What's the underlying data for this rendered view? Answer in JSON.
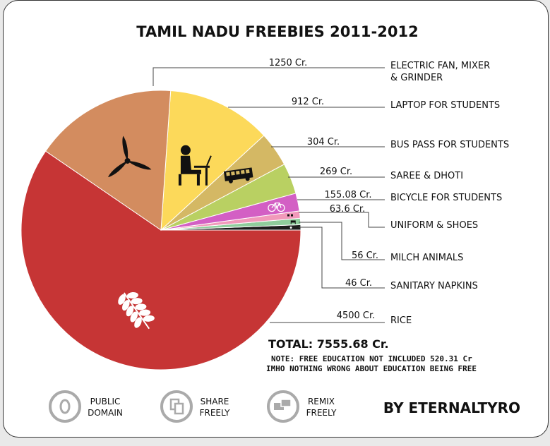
{
  "chart_data": {
    "type": "pie",
    "title": "TAMIL NADU FREEBIES 2011-2012",
    "unit": "Cr.",
    "slices": [
      {
        "label": "RICE",
        "value": 4500,
        "value_label": "4500 Cr.",
        "color": "#c63535"
      },
      {
        "label": "ELECTRIC FAN, MIXER & GRINDER",
        "value": 1250,
        "value_label": "1250 Cr.",
        "color": "#d38c5f"
      },
      {
        "label": "LAPTOP FOR STUDENTS",
        "value": 912,
        "value_label": "912 Cr.",
        "color": "#fcd95a"
      },
      {
        "label": "BUS PASS FOR STUDENTS",
        "value": 304,
        "value_label": "304 Cr.",
        "color": "#d4b864"
      },
      {
        "label": "SAREE & DHOTI",
        "value": 269,
        "value_label": "269 Cr.",
        "color": "#b9d062"
      },
      {
        "label": "BICYCLE FOR STUDENTS",
        "value": 155.08,
        "value_label": "155.08 Cr.",
        "color": "#d35fc4"
      },
      {
        "label": "UNIFORM & SHOES",
        "value": 63.6,
        "value_label": "63.6 Cr.",
        "color": "#f199ba"
      },
      {
        "label": "MILCH ANIMALS",
        "value": 56,
        "value_label": "56 Cr.",
        "color": "#8fcd9c"
      },
      {
        "label": "SANITARY NAPKINS",
        "value": 46,
        "value_label": "46 Cr.",
        "color": "#1d1d1d"
      }
    ],
    "total_label": "TOTAL: 7555.68 Cr.",
    "notes": [
      "NOTE: FREE EDUCATION NOT INCLUDED 520.31 Cr",
      "IMHO NOTHING WRONG ABOUT EDUCATION BEING FREE"
    ]
  },
  "footer": {
    "badges": [
      {
        "icon": "public-domain-icon",
        "line1": "PUBLIC",
        "line2": "DOMAIN"
      },
      {
        "icon": "share-freely-icon",
        "line1": "SHARE",
        "line2": "FREELY"
      },
      {
        "icon": "remix-freely-icon",
        "line1": "REMIX",
        "line2": "FREELY"
      }
    ],
    "author": "BY ETERNALTYRO"
  }
}
